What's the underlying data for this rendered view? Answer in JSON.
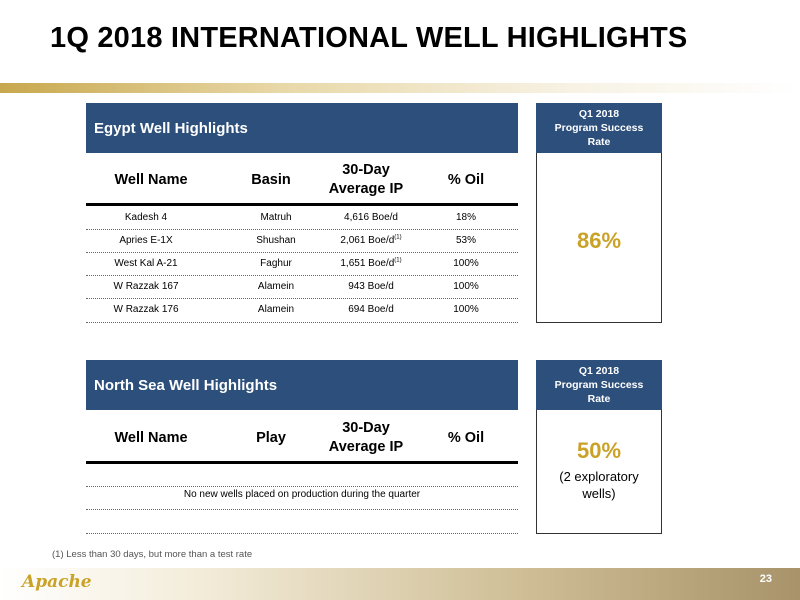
{
  "title": "1Q 2018 INTERNATIONAL WELL HIGHLIGHTS",
  "egypt": {
    "header": "Egypt Well Highlights",
    "rate_header": [
      "Q1 2018",
      "Program Success",
      "Rate"
    ],
    "rate_value": "86%",
    "columns": [
      "Well Name",
      "Basin",
      "30-Day",
      "Average IP",
      "% Oil"
    ],
    "rows": [
      {
        "well": "Kadesh 4",
        "basin": "Matruh",
        "ip": "4,616 Boe/d",
        "note": "",
        "oil": "18%"
      },
      {
        "well": "Apries E-1X",
        "basin": "Shushan",
        "ip": "2,061 Boe/d",
        "note": "(1)",
        "oil": "53%"
      },
      {
        "well": "West Kal A-21",
        "basin": "Faghur",
        "ip": "1,651 Boe/d",
        "note": "(1)",
        "oil": "100%"
      },
      {
        "well": "W Razzak 167",
        "basin": "Alamein",
        "ip": "943 Boe/d",
        "note": "",
        "oil": "100%"
      },
      {
        "well": "W Razzak 176",
        "basin": "Alamein",
        "ip": "694 Boe/d",
        "note": "",
        "oil": "100%"
      }
    ]
  },
  "northsea": {
    "header": "North Sea Well Highlights",
    "rate_header": [
      "Q1 2018",
      "Program Success",
      "Rate"
    ],
    "rate_value": "50%",
    "rate_note": [
      "(2 exploratory",
      "wells)"
    ],
    "columns": [
      "Well Name",
      "Play",
      "30-Day",
      "Average IP",
      "% Oil"
    ],
    "message": "No new wells placed on production during the quarter"
  },
  "footnote": "(1)  Less than 30 days, but more than a test rate",
  "logo_text": "Apache",
  "page_number": "23",
  "colors": {
    "header_blue": "#2d4f7c",
    "accent_gold": "#c9a227"
  }
}
